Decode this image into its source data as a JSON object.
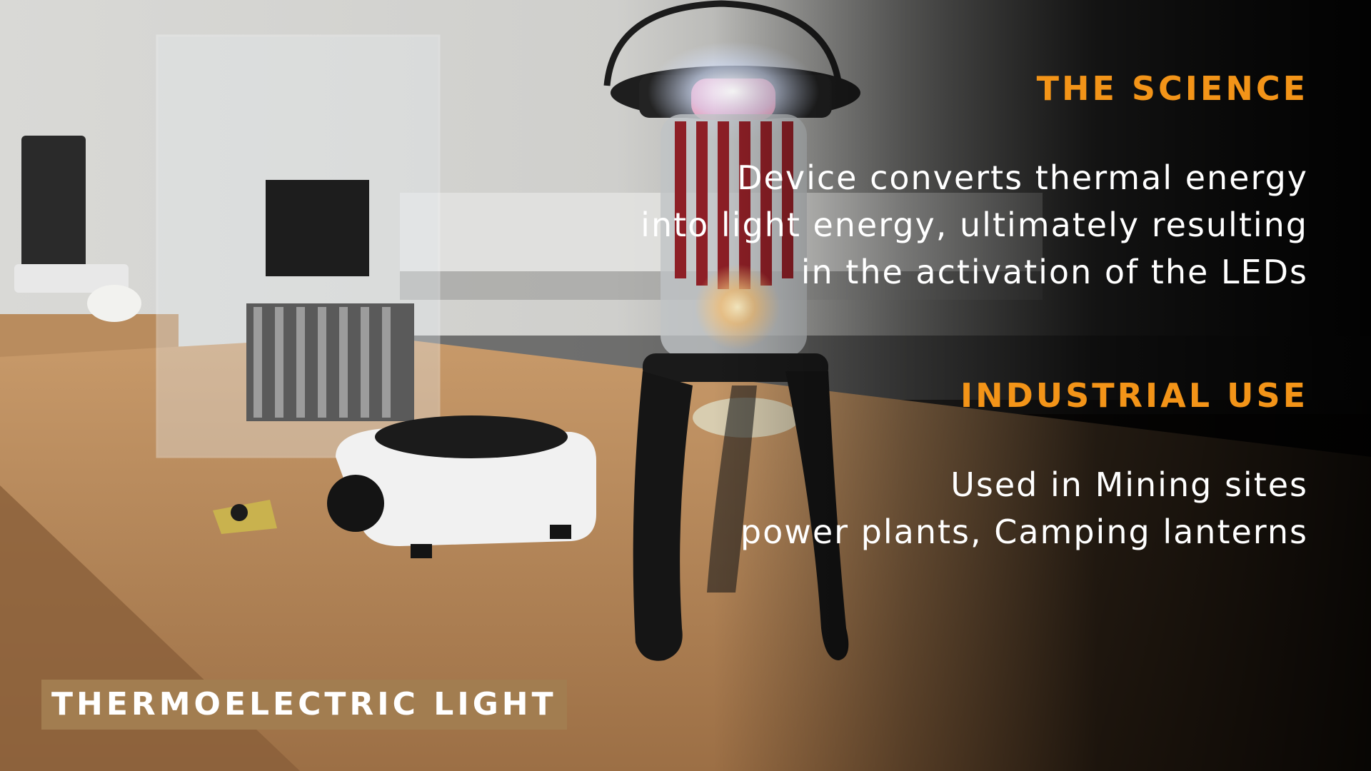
{
  "science": {
    "heading": "THE SCIENCE",
    "lines": [
      "Device converts thermal energy",
      "into light energy, ultimately resulting",
      "in the activation of the LEDs"
    ]
  },
  "industrial": {
    "heading": "INDUSTRIAL USE",
    "lines": [
      "Used in Mining sites",
      "power plants, Camping lanterns"
    ]
  },
  "title_badge": {
    "label": "THERMOELECTRIC LIGHT"
  },
  "colors": {
    "heading_accent": "#f39418",
    "badge_background": "#a27d50",
    "body_text": "#ffffff"
  }
}
